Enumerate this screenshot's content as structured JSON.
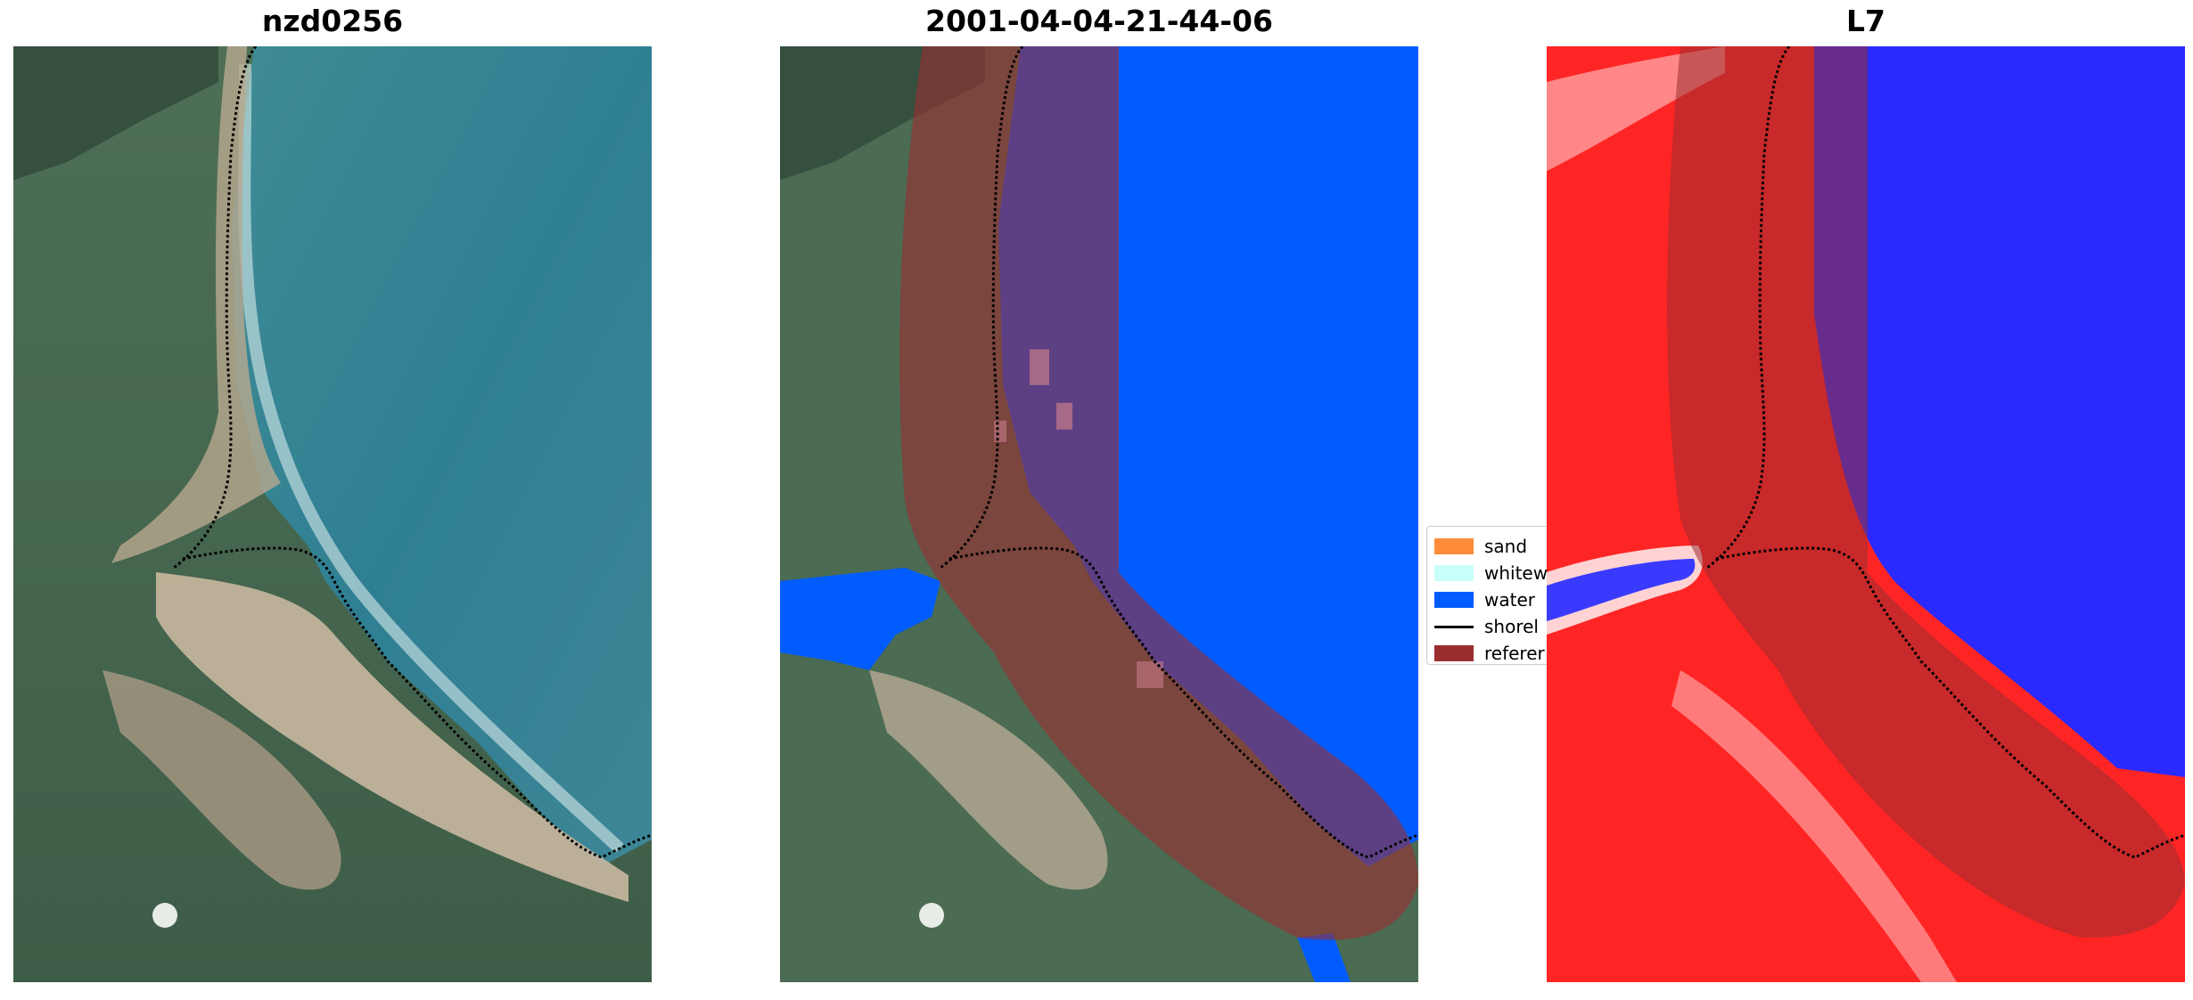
{
  "figure": {
    "titles": {
      "left": "nzd0256",
      "middle": "2001-04-04-21-44-06",
      "right": "L7"
    },
    "legend": {
      "placement": "center (between middle and right panels, partially clipped)",
      "entries": [
        {
          "label": "sand",
          "color": "#ff8c3a",
          "kind": "patch"
        },
        {
          "label": "whitew",
          "color": "#c8fff8",
          "kind": "patch"
        },
        {
          "label": "water",
          "color": "#005cff",
          "kind": "patch"
        },
        {
          "label": "shorel",
          "color": "#000000",
          "kind": "line"
        },
        {
          "label": "referer",
          "color": "#9b2d30",
          "kind": "patch"
        }
      ]
    },
    "colors": {
      "water_class": "#005cff",
      "reference_overlay": "#9b2d30",
      "shoreline": "#000000",
      "ndwi_red": "#ff2020",
      "ndwi_blue": "#2020ff"
    }
  }
}
